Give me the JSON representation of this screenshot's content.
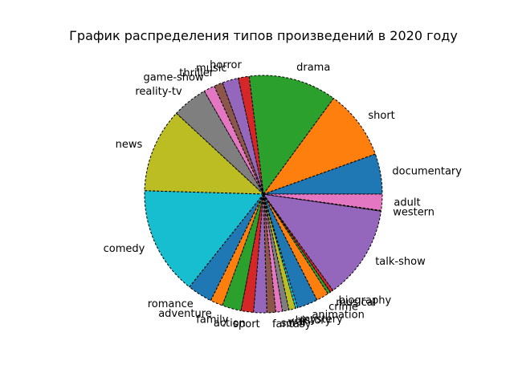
{
  "chart_data": {
    "type": "pie",
    "title": "График распределения типов произведений в 2020 году",
    "start_angle_deg": 0,
    "direction": "counterclockwise",
    "slices": [
      {
        "label": "documentary",
        "value": 55,
        "color": "#1f77b4"
      },
      {
        "label": "short",
        "value": 95,
        "color": "#ff7f0e"
      },
      {
        "label": "drama",
        "value": 120,
        "color": "#2ca02c"
      },
      {
        "label": "horror",
        "value": 15,
        "color": "#d62728"
      },
      {
        "label": "music",
        "value": 22,
        "color": "#9467bd"
      },
      {
        "label": "thriller",
        "value": 12,
        "color": "#8c564b"
      },
      {
        "label": "game-show",
        "value": 15,
        "color": "#e377c2"
      },
      {
        "label": "reality-tv",
        "value": 48,
        "color": "#7f7f7f"
      },
      {
        "label": "news",
        "value": 115,
        "color": "#bcbd22"
      },
      {
        "label": "comedy",
        "value": 148,
        "color": "#17becf"
      },
      {
        "label": "romance",
        "value": 34,
        "color": "#1f77b4"
      },
      {
        "label": "adventure",
        "value": 17,
        "color": "#ff7f0e"
      },
      {
        "label": "family",
        "value": 26,
        "color": "#2ca02c"
      },
      {
        "label": "action",
        "value": 17,
        "color": "#d62728"
      },
      {
        "label": "sport",
        "value": 18,
        "color": "#9467bd"
      },
      {
        "label": "fantasy",
        "value": 12,
        "color": "#8c564b"
      },
      {
        "label": "sci-fi",
        "value": 9,
        "color": "#e377c2"
      },
      {
        "label": "war",
        "value": 9,
        "color": "#7f7f7f"
      },
      {
        "label": "history",
        "value": 9,
        "color": "#bcbd22"
      },
      {
        "label": "mystery",
        "value": 3,
        "color": "#17becf"
      },
      {
        "label": "animation",
        "value": 28,
        "color": "#1f77b4"
      },
      {
        "label": "crime",
        "value": 17,
        "color": "#ff7f0e"
      },
      {
        "label": "musical",
        "value": 4,
        "color": "#2ca02c"
      },
      {
        "label": "biography",
        "value": 4,
        "color": "#d62728"
      },
      {
        "label": "talk-show",
        "value": 128,
        "color": "#9467bd"
      },
      {
        "label": "western",
        "value": 1,
        "color": "#8c564b"
      },
      {
        "label": "adult",
        "value": 22,
        "color": "#e377c2"
      }
    ]
  }
}
